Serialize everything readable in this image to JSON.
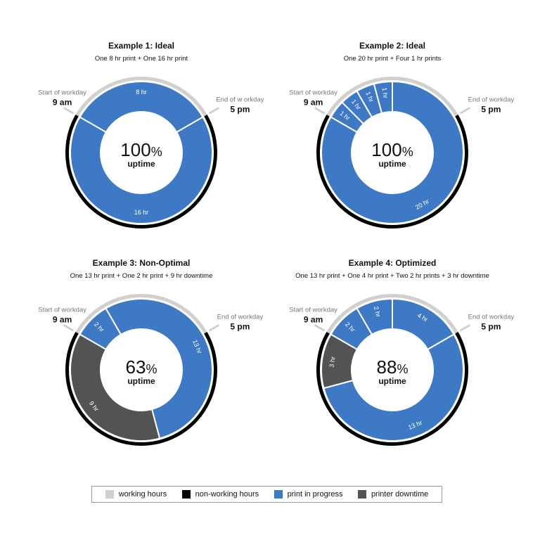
{
  "colors": {
    "working": "#d0d0d0",
    "nonworking": "#000000",
    "print": "#3d79c4",
    "downtime": "#535353",
    "separator": "#ffffff"
  },
  "legend": [
    {
      "label": "working hours",
      "color": "#d0d0d0"
    },
    {
      "label": "non-working hours",
      "color": "#000000"
    },
    {
      "label": "print in progress",
      "color": "#3d79c4"
    },
    {
      "label": "printer downtime",
      "color": "#535353"
    }
  ],
  "chart_data": [
    {
      "type": "pie",
      "title": "Example 1:  Ideal",
      "subtitle": "One 8 hr print + One 16 hr print",
      "center_value": "100",
      "center_unit": "%",
      "center_label": "uptime",
      "start_label": "Start of workday",
      "start_time": "9 am",
      "end_label": "End of w orkday",
      "end_time": "5 pm",
      "segments": [
        {
          "label": "8 hr",
          "hours": 8,
          "kind": "print"
        },
        {
          "label": "16 hr",
          "hours": 16,
          "kind": "print"
        }
      ]
    },
    {
      "type": "pie",
      "title": "Example 2: Ideal",
      "subtitle": "One 20 hr print + Four 1 hr prints",
      "center_value": "100",
      "center_unit": "%",
      "center_label": "uptime",
      "start_label": "Start of workday",
      "start_time": "9 am",
      "end_label": "End of workday",
      "end_time": "5 pm",
      "segments": [
        {
          "label": "1 hr",
          "hours": 1,
          "kind": "print"
        },
        {
          "label": "1 hr",
          "hours": 1,
          "kind": "print"
        },
        {
          "label": "1 hr",
          "hours": 1,
          "kind": "print"
        },
        {
          "label": "1 hr",
          "hours": 1,
          "kind": "print"
        },
        {
          "label": "20 hr",
          "hours": 20,
          "kind": "print"
        }
      ]
    },
    {
      "type": "pie",
      "title": "Example 3:  Non-Optimal",
      "subtitle": "One 13 hr print + One 2 hr print + 9 hr downtime",
      "center_value": "63",
      "center_unit": "%",
      "center_label": "uptime",
      "start_label": "Start of workday",
      "start_time": "9 am",
      "end_label": "End of workday",
      "end_time": "5 pm",
      "segments": [
        {
          "label": "2 hr",
          "hours": 2,
          "kind": "print"
        },
        {
          "label": "13 hr",
          "hours": 13,
          "kind": "print"
        },
        {
          "label": "9 hr",
          "hours": 9,
          "kind": "downtime"
        }
      ]
    },
    {
      "type": "pie",
      "title": "Example 4: Optimized",
      "subtitle": "One 13 hr print + One 4 hr print + Two 2 hr prints + 3 hr downtime",
      "center_value": "88",
      "center_unit": "%",
      "center_label": "uptime",
      "start_label": "Start of workday",
      "start_time": "9 am",
      "end_label": "End of workday",
      "end_time": "5 pm",
      "segments": [
        {
          "label": "2 hr",
          "hours": 2,
          "kind": "print"
        },
        {
          "label": "2 hr",
          "hours": 2,
          "kind": "print"
        },
        {
          "label": "4 hr",
          "hours": 4,
          "kind": "print"
        },
        {
          "label": "13 hr",
          "hours": 13,
          "kind": "print"
        },
        {
          "label": "3 hr",
          "hours": 3,
          "kind": "downtime"
        }
      ]
    }
  ]
}
